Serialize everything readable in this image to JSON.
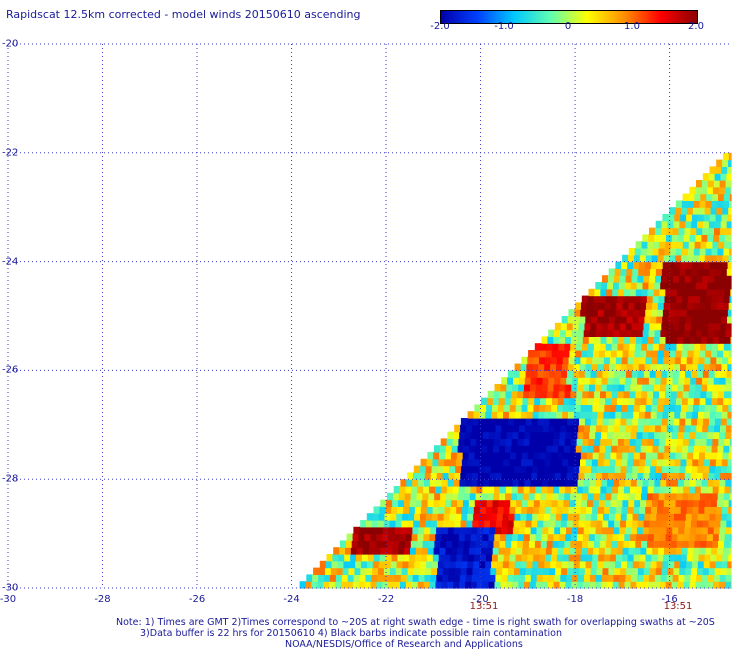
{
  "chart_data": {
    "type": "heatmap",
    "title": "Rapidscat 12.5km corrected - model winds 20150610 ascending",
    "xlabel": "",
    "ylabel": "",
    "xlim": [
      -30,
      -14.7
    ],
    "ylim": [
      -30,
      -20
    ],
    "grid": true,
    "x_ticks": [
      "-30",
      "-28",
      "-26",
      "-24",
      "-22",
      "-20",
      "-18",
      "-16"
    ],
    "y_ticks": [
      "-20",
      "-22",
      "-24",
      "-26",
      "-28",
      "-30"
    ],
    "colorbar": {
      "range": [
        -2.0,
        2.0
      ],
      "ticks": [
        "-2.0",
        "-1.0",
        "0",
        "1.0",
        "2.0"
      ],
      "colors": [
        "#0000aa",
        "#0040ff",
        "#00c8ff",
        "#60ffb0",
        "#ffff00",
        "#ff9000",
        "#ff0000",
        "#8b0000"
      ]
    },
    "swath_times": [
      "13:51",
      "13:51"
    ],
    "swath": {
      "edge": [
        [
          -23.9,
          -30
        ],
        [
          -14.8,
          -22
        ]
      ],
      "regions": [
        {
          "name": "upper-right strong positive",
          "lon": [
            -16.2,
            -14.8
          ],
          "lat": [
            -25.5,
            -24.1
          ],
          "value": 2.0
        },
        {
          "name": "strong positive band",
          "lon": [
            -17.9,
            -16.6
          ],
          "lat": [
            -25.4,
            -24.7
          ],
          "value": 1.9
        },
        {
          "name": "positive patch",
          "lon": [
            -19.1,
            -18.2
          ],
          "lat": [
            -26.6,
            -25.6
          ],
          "value": 1.2
        },
        {
          "name": "negative core",
          "lon": [
            -20.5,
            -18.0
          ],
          "lat": [
            -28.2,
            -27.0
          ],
          "value": -2.0
        },
        {
          "name": "lower positive patch",
          "lon": [
            -20.2,
            -19.4
          ],
          "lat": [
            -29.1,
            -28.4
          ],
          "value": 1.5
        },
        {
          "name": "lower-left strong positive",
          "lon": [
            -22.8,
            -21.5
          ],
          "lat": [
            -29.4,
            -28.9
          ],
          "value": 1.9
        },
        {
          "name": "lower negative area",
          "lon": [
            -21.0,
            -19.8
          ],
          "lat": [
            -30.0,
            -29.0
          ],
          "value": -1.8
        },
        {
          "name": "right mid positive",
          "lon": [
            -16.6,
            -15.0
          ],
          "lat": [
            -29.3,
            -28.3
          ],
          "value": 0.9
        }
      ]
    }
  },
  "notes": {
    "line1": "Note: 1) Times are GMT 2)Times correspond to ~20S at right swath edge - time is right swath for overlapping swaths at ~20S",
    "line2": "3)Data buffer is 22 hrs for 20150610 4) Black barbs indicate possible rain contamination",
    "line3": "NOAA/NESDIS/Office of Research and Applications"
  }
}
